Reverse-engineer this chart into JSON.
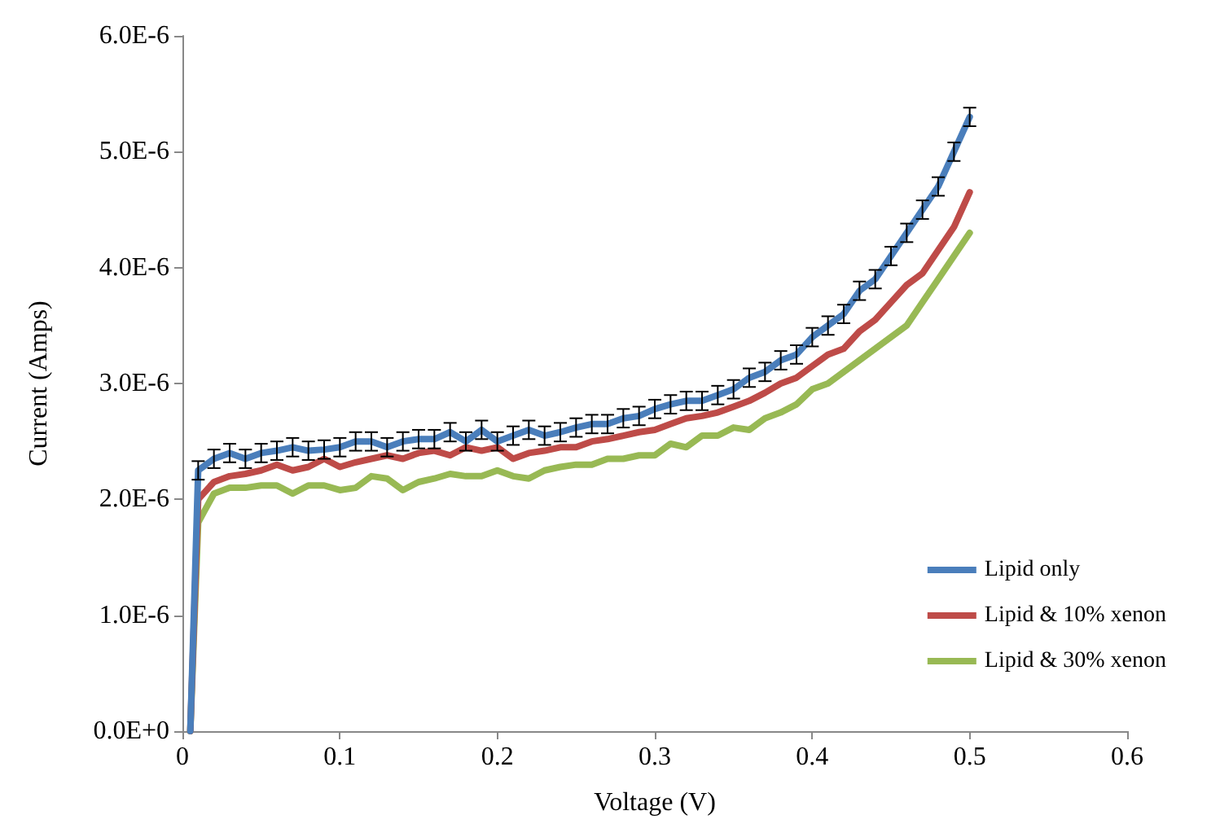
{
  "chart_data": {
    "type": "line",
    "xlabel": "Voltage (V)",
    "ylabel": "Current (Amps)",
    "x": [
      0.005,
      0.01,
      0.02,
      0.03,
      0.04,
      0.05,
      0.06,
      0.07,
      0.08,
      0.09,
      0.1,
      0.11,
      0.12,
      0.13,
      0.14,
      0.15,
      0.16,
      0.17,
      0.18,
      0.19,
      0.2,
      0.21,
      0.22,
      0.23,
      0.24,
      0.25,
      0.26,
      0.27,
      0.28,
      0.29,
      0.3,
      0.31,
      0.32,
      0.33,
      0.34,
      0.35,
      0.36,
      0.37,
      0.38,
      0.39,
      0.4,
      0.41,
      0.42,
      0.43,
      0.44,
      0.45,
      0.46,
      0.47,
      0.48,
      0.49,
      0.5
    ],
    "series": [
      {
        "name": "Lipid only",
        "color": "#4a7ebb",
        "values": [
          0,
          2.25e-06,
          2.35e-06,
          2.4e-06,
          2.35e-06,
          2.4e-06,
          2.42e-06,
          2.45e-06,
          2.42e-06,
          2.43e-06,
          2.45e-06,
          2.5e-06,
          2.5e-06,
          2.45e-06,
          2.5e-06,
          2.52e-06,
          2.52e-06,
          2.58e-06,
          2.5e-06,
          2.6e-06,
          2.5e-06,
          2.55e-06,
          2.6e-06,
          2.55e-06,
          2.58e-06,
          2.62e-06,
          2.65e-06,
          2.65e-06,
          2.7e-06,
          2.72e-06,
          2.78e-06,
          2.82e-06,
          2.85e-06,
          2.85e-06,
          2.9e-06,
          2.95e-06,
          3.05e-06,
          3.1e-06,
          3.2e-06,
          3.25e-06,
          3.4e-06,
          3.5e-06,
          3.6e-06,
          3.8e-06,
          3.9e-06,
          4.1e-06,
          4.3e-06,
          4.5e-06,
          4.7e-06,
          5e-06,
          5.3e-06
        ],
        "errors": [
          null,
          8e-08,
          8e-08,
          8e-08,
          8e-08,
          8e-08,
          8e-08,
          8e-08,
          8e-08,
          8e-08,
          8e-08,
          8e-08,
          8e-08,
          8e-08,
          8e-08,
          8e-08,
          8e-08,
          8e-08,
          8e-08,
          8e-08,
          8e-08,
          8e-08,
          8e-08,
          8e-08,
          8e-08,
          8e-08,
          8e-08,
          8e-08,
          8e-08,
          8e-08,
          8e-08,
          8e-08,
          8e-08,
          8e-08,
          8e-08,
          8e-08,
          8e-08,
          8e-08,
          8e-08,
          8e-08,
          8e-08,
          8e-08,
          8e-08,
          8e-08,
          8e-08,
          8e-08,
          8e-08,
          8e-08,
          8e-08,
          8e-08,
          8e-08
        ]
      },
      {
        "name": "Lipid & 10% xenon",
        "color": "#be4b48",
        "values": [
          0,
          2e-06,
          2.15e-06,
          2.2e-06,
          2.22e-06,
          2.25e-06,
          2.3e-06,
          2.25e-06,
          2.28e-06,
          2.35e-06,
          2.28e-06,
          2.32e-06,
          2.35e-06,
          2.38e-06,
          2.35e-06,
          2.4e-06,
          2.42e-06,
          2.38e-06,
          2.45e-06,
          2.42e-06,
          2.45e-06,
          2.35e-06,
          2.4e-06,
          2.42e-06,
          2.45e-06,
          2.45e-06,
          2.5e-06,
          2.52e-06,
          2.55e-06,
          2.58e-06,
          2.6e-06,
          2.65e-06,
          2.7e-06,
          2.72e-06,
          2.75e-06,
          2.8e-06,
          2.85e-06,
          2.92e-06,
          3e-06,
          3.05e-06,
          3.15e-06,
          3.25e-06,
          3.3e-06,
          3.45e-06,
          3.55e-06,
          3.7e-06,
          3.85e-06,
          3.95e-06,
          4.15e-06,
          4.35e-06,
          4.65e-06
        ]
      },
      {
        "name": "Lipid & 30% xenon",
        "color": "#98b954",
        "values": [
          0,
          1.8e-06,
          2.05e-06,
          2.1e-06,
          2.1e-06,
          2.12e-06,
          2.12e-06,
          2.05e-06,
          2.12e-06,
          2.12e-06,
          2.08e-06,
          2.1e-06,
          2.2e-06,
          2.18e-06,
          2.08e-06,
          2.15e-06,
          2.18e-06,
          2.22e-06,
          2.2e-06,
          2.2e-06,
          2.25e-06,
          2.2e-06,
          2.18e-06,
          2.25e-06,
          2.28e-06,
          2.3e-06,
          2.3e-06,
          2.35e-06,
          2.35e-06,
          2.38e-06,
          2.38e-06,
          2.48e-06,
          2.45e-06,
          2.55e-06,
          2.55e-06,
          2.62e-06,
          2.6e-06,
          2.7e-06,
          2.75e-06,
          2.82e-06,
          2.95e-06,
          3e-06,
          3.1e-06,
          3.2e-06,
          3.3e-06,
          3.4e-06,
          3.5e-06,
          3.7e-06,
          3.9e-06,
          4.1e-06,
          4.3e-06
        ]
      }
    ],
    "xlim": [
      0,
      0.6
    ],
    "xticks": [
      0,
      0.1,
      0.2,
      0.3,
      0.4,
      0.5,
      0.6
    ],
    "ylim": [
      0,
      6e-06
    ],
    "yticks": [
      {
        "value": 0,
        "label": "0.0E+0"
      },
      {
        "value": 1e-06,
        "label": "1.0E-6"
      },
      {
        "value": 2e-06,
        "label": "2.0E-6"
      },
      {
        "value": 3e-06,
        "label": "3.0E-6"
      },
      {
        "value": 4e-06,
        "label": "4.0E-6"
      },
      {
        "value": 5e-06,
        "label": "5.0E-6"
      },
      {
        "value": 6e-06,
        "label": "6.0E-6"
      }
    ],
    "grid": false,
    "legend": "right",
    "marker": "none",
    "line_style": "solid"
  }
}
